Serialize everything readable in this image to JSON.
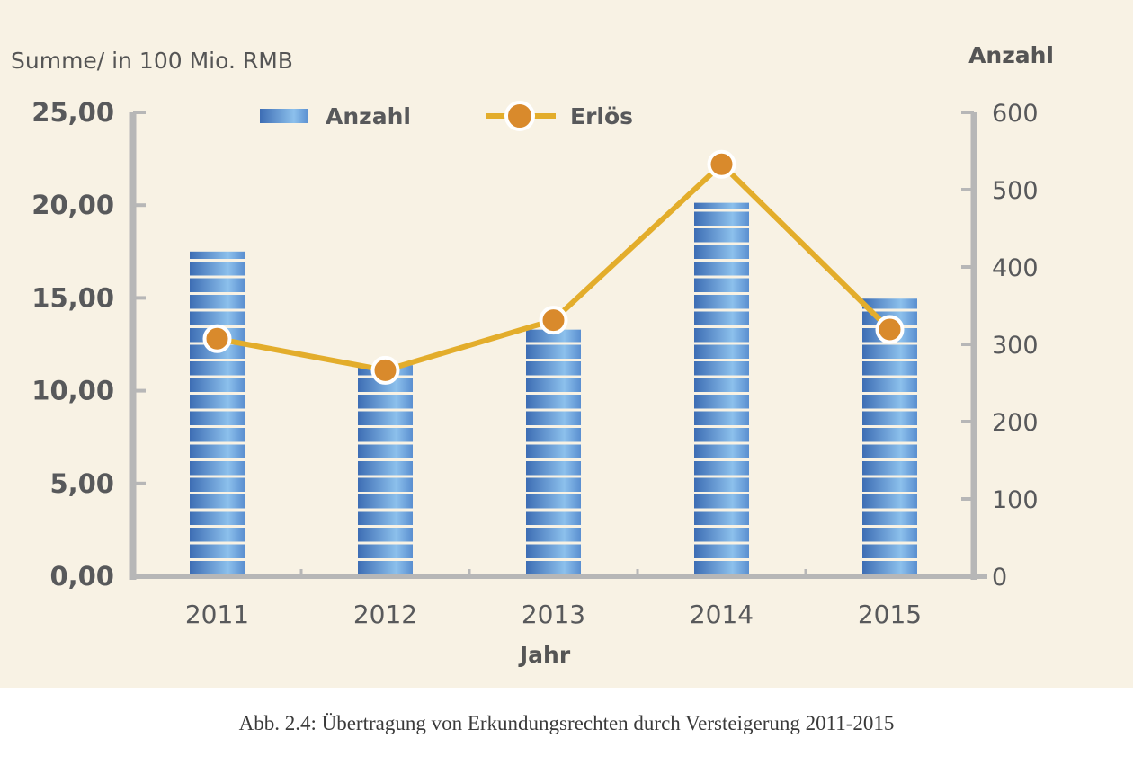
{
  "caption": "Abb. 2.4: Übertragung von Erkundungsrechten durch Versteigerung 2011-2015",
  "colors": {
    "background": "#f8f2e4",
    "axis": "#b7b7b7",
    "bar_dark": "#3f6fb6",
    "bar_light": "#8fc3ee",
    "line": "#e3ad2b",
    "marker": "#d98a2c"
  },
  "chart_data": {
    "type": "bar",
    "categories": [
      "2011",
      "2012",
      "2013",
      "2014",
      "2015"
    ],
    "series": [
      {
        "name": "Anzahl",
        "type": "bar",
        "axis": "right",
        "values": [
          420,
          273,
          319,
          483,
          359
        ]
      },
      {
        "name": "Erlös",
        "type": "line",
        "axis": "left",
        "values": [
          12.8,
          11.1,
          13.8,
          22.2,
          13.3
        ]
      }
    ],
    "ylabel_left": "Summe/ in 100 Mio. RMB",
    "ylabel_right": "Anzahl",
    "xlabel": "Jahr",
    "ylim_left": [
      0,
      25
    ],
    "yticks_left": [
      "0,00",
      "5,00",
      "10,00",
      "15,00",
      "20,00",
      "25,00"
    ],
    "ylim_right": [
      0,
      600
    ],
    "yticks_right": [
      "0",
      "100",
      "200",
      "300",
      "400",
      "500",
      "600"
    ],
    "legend_position": "top",
    "grid": false
  }
}
